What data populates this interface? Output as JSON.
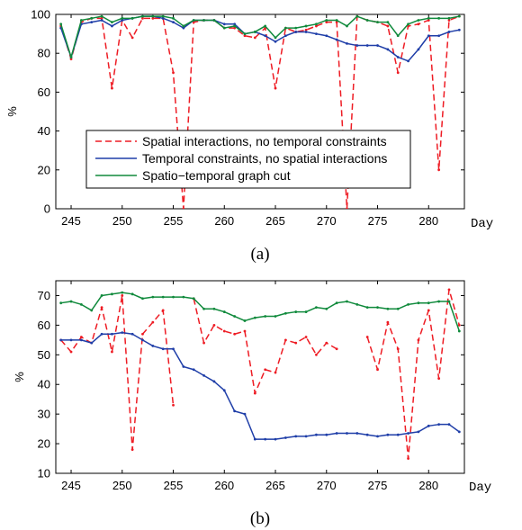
{
  "chart_data": [
    {
      "type": "line",
      "caption": "(a)",
      "ylabel": "%",
      "xlabel": "Day",
      "xlim": [
        243.5,
        283.5
      ],
      "ylim": [
        0,
        100
      ],
      "xticks": [
        "245",
        "250",
        "255",
        "260",
        "265",
        "270",
        "275",
        "280"
      ],
      "yticks": [
        "0",
        "20",
        "40",
        "60",
        "80",
        "100"
      ],
      "x": [
        244,
        245,
        246,
        247,
        248,
        249,
        250,
        251,
        252,
        253,
        254,
        255,
        256,
        257,
        258,
        259,
        260,
        261,
        262,
        263,
        264,
        265,
        266,
        267,
        268,
        269,
        270,
        271,
        272,
        273,
        274,
        275,
        276,
        277,
        278,
        279,
        280,
        281,
        282,
        283
      ],
      "legend": {
        "position": "lower-center"
      },
      "series": [
        {
          "name": "Spatial interactions, no temporal constraints",
          "color": "#ee1c24",
          "dash": "dashed",
          "values": [
            94,
            77,
            96,
            98,
            98,
            62,
            97,
            88,
            98,
            98,
            98,
            70,
            0,
            96,
            97,
            97,
            93,
            93,
            89,
            88,
            93,
            62,
            93,
            91,
            92,
            94,
            96,
            96,
            0,
            99,
            97,
            96,
            94,
            70,
            94,
            95,
            97,
            20,
            97,
            99
          ]
        },
        {
          "name": "Temporal constraints, no spatial interactions",
          "color": "#1f3ea8",
          "dash": "solid",
          "values": [
            93,
            78,
            95,
            96,
            97,
            94,
            97,
            98,
            99,
            99,
            98,
            96,
            93,
            97,
            97,
            97,
            95,
            95,
            90,
            91,
            89,
            86,
            89,
            91,
            91,
            90,
            89,
            87,
            85,
            84,
            84,
            84,
            82,
            78,
            76,
            82,
            89,
            89,
            91,
            92
          ]
        },
        {
          "name": "Spatio−temporal graph cut",
          "color": "#108a3c",
          "dash": "solid",
          "values": [
            95,
            78,
            97,
            98,
            99,
            96,
            98,
            98,
            99,
            99,
            99,
            98,
            94,
            97,
            97,
            97,
            93,
            94,
            90,
            91,
            94,
            88,
            93,
            93,
            94,
            95,
            97,
            97,
            94,
            99,
            97,
            96,
            96,
            89,
            95,
            97,
            98,
            98,
            98,
            99
          ]
        }
      ]
    },
    {
      "type": "line",
      "caption": "(b)",
      "ylabel": "%",
      "xlabel": "Day",
      "xlim": [
        243.5,
        283.5
      ],
      "ylim": [
        10,
        75
      ],
      "xticks": [
        "245",
        "250",
        "255",
        "260",
        "265",
        "270",
        "275",
        "280"
      ],
      "yticks": [
        "10",
        "20",
        "30",
        "40",
        "50",
        "60",
        "70"
      ],
      "x": [
        244,
        245,
        246,
        247,
        248,
        249,
        250,
        251,
        252,
        253,
        254,
        255,
        256,
        257,
        258,
        259,
        260,
        261,
        262,
        263,
        264,
        265,
        266,
        267,
        268,
        269,
        270,
        271,
        272,
        273,
        274,
        275,
        276,
        277,
        278,
        279,
        280,
        281,
        282,
        283
      ],
      "series": [
        {
          "name": "Spatial interactions, no temporal constraints",
          "color": "#ee1c24",
          "dash": "dashed",
          "values": [
            55,
            51,
            56,
            54,
            66,
            51,
            70,
            18,
            57,
            61,
            65,
            33,
            null,
            69,
            54,
            60,
            58,
            57,
            58,
            37,
            45,
            44,
            55,
            54,
            56,
            50,
            54,
            52,
            null,
            null,
            56,
            45,
            61,
            52,
            15,
            55,
            65,
            42,
            72,
            60
          ]
        },
        {
          "name": "Temporal constraints, no spatial interactions",
          "color": "#1f3ea8",
          "dash": "solid",
          "values": [
            55,
            55,
            55,
            54,
            57,
            57,
            57.5,
            57,
            55,
            53,
            52,
            52,
            46,
            45,
            43,
            41,
            38,
            31,
            30,
            21.5,
            21.5,
            21.5,
            22,
            22.5,
            22.5,
            23,
            23,
            23.5,
            23.5,
            23.5,
            23,
            22.5,
            23,
            23,
            23.5,
            24,
            26,
            26.5,
            26.5,
            24
          ]
        },
        {
          "name": "Spatio−temporal graph cut",
          "color": "#108a3c",
          "dash": "solid",
          "values": [
            67.5,
            68,
            67,
            65,
            70,
            70.5,
            71,
            70.5,
            69,
            69.5,
            69.5,
            69.5,
            69.5,
            69,
            65.5,
            65.5,
            64.5,
            63,
            61.5,
            62.5,
            63,
            63,
            64,
            64.5,
            64.5,
            66,
            65.5,
            67.5,
            68,
            67,
            66,
            66,
            65.5,
            65.5,
            67,
            67.5,
            67.5,
            68,
            68,
            58
          ]
        }
      ]
    }
  ]
}
